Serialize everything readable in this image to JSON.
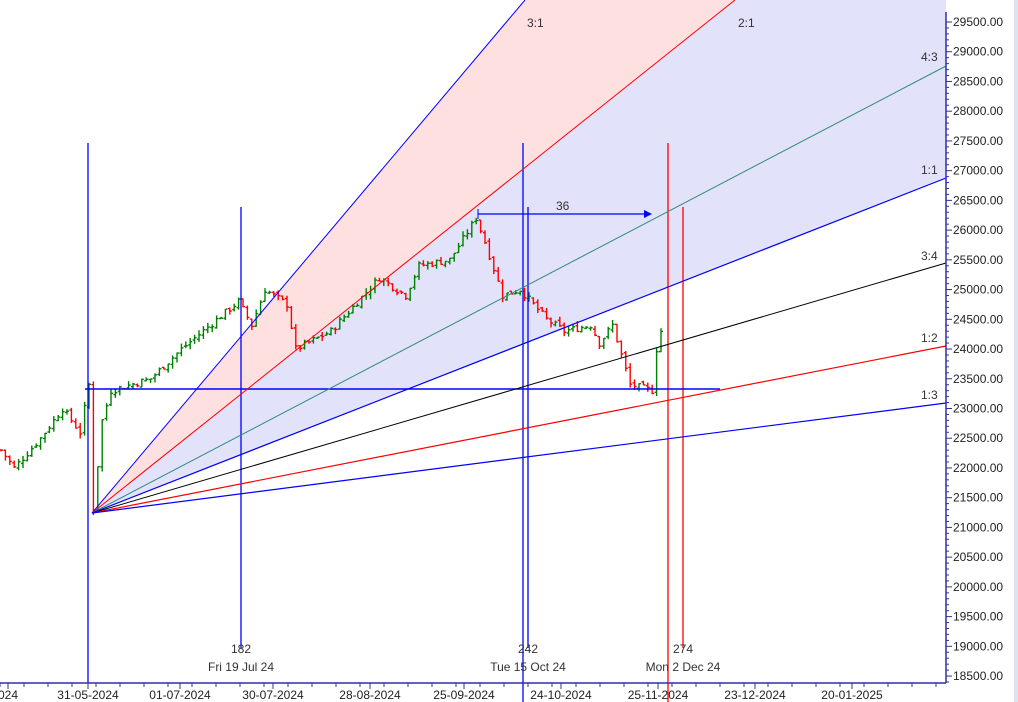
{
  "chart_data": {
    "type": "bar",
    "title": "",
    "xlabel": "",
    "ylabel": "",
    "ylim": [
      18400,
      29700
    ],
    "grid": false,
    "y_ticks": [
      "29500.00",
      "29000.00",
      "28500.00",
      "28000.00",
      "27500.00",
      "27000.00",
      "26500.00",
      "26000.00",
      "25500.00",
      "25000.00",
      "24500.00",
      "24000.00",
      "23500.00",
      "23000.00",
      "22500.00",
      "22000.00",
      "21500.00",
      "21000.00",
      "20500.00",
      "20000.00",
      "19500.00",
      "19000.00",
      "18500.00"
    ],
    "x_ticks": [
      "024",
      "31-05-2024",
      "01-07-2024",
      "30-07-2024",
      "28-08-2024",
      "25-09-2024",
      "24-10-2024",
      "25-11-2024",
      "23-12-2024",
      "20-01-2025"
    ],
    "price_keypoints": [
      [
        0,
        22300
      ],
      [
        3,
        22000
      ],
      [
        9,
        22500
      ],
      [
        14,
        23000
      ],
      [
        18,
        22600
      ],
      [
        20,
        23400
      ],
      [
        21,
        21300
      ],
      [
        23,
        22800
      ],
      [
        25,
        23300
      ],
      [
        34,
        23500
      ],
      [
        41,
        24000
      ],
      [
        54,
        24800
      ],
      [
        57,
        24400
      ],
      [
        60,
        25000
      ],
      [
        65,
        24750
      ],
      [
        67,
        24000
      ],
      [
        75,
        24300
      ],
      [
        86,
        25200
      ],
      [
        92,
        24900
      ],
      [
        95,
        25400
      ],
      [
        102,
        25500
      ],
      [
        108,
        26200
      ],
      [
        110,
        25800
      ],
      [
        114,
        24900
      ],
      [
        118,
        25000
      ],
      [
        124,
        24500
      ],
      [
        128,
        24300
      ],
      [
        134,
        24400
      ],
      [
        136,
        24100
      ],
      [
        139,
        24400
      ],
      [
        143,
        23400
      ],
      [
        148,
        23300
      ],
      [
        149,
        24000
      ],
      [
        150,
        24300
      ]
    ],
    "up_color": "#008000",
    "down_color": "#ff0000",
    "gann_fan": {
      "origin_price": 21200,
      "origin_date": "31-05-2024",
      "angles": [
        "3:1",
        "2:1",
        "4:3",
        "1:1",
        "3:4",
        "1:2",
        "1:3"
      ]
    },
    "horizontal_level": 23350,
    "markers": [
      {
        "count": "182",
        "date": "Fri 19 Jul 24"
      },
      {
        "count": "242",
        "date": "Tue 15 Oct 24"
      },
      {
        "count": "274",
        "date": "Mon 2 Dec 24"
      }
    ],
    "arrow_label": "36"
  }
}
